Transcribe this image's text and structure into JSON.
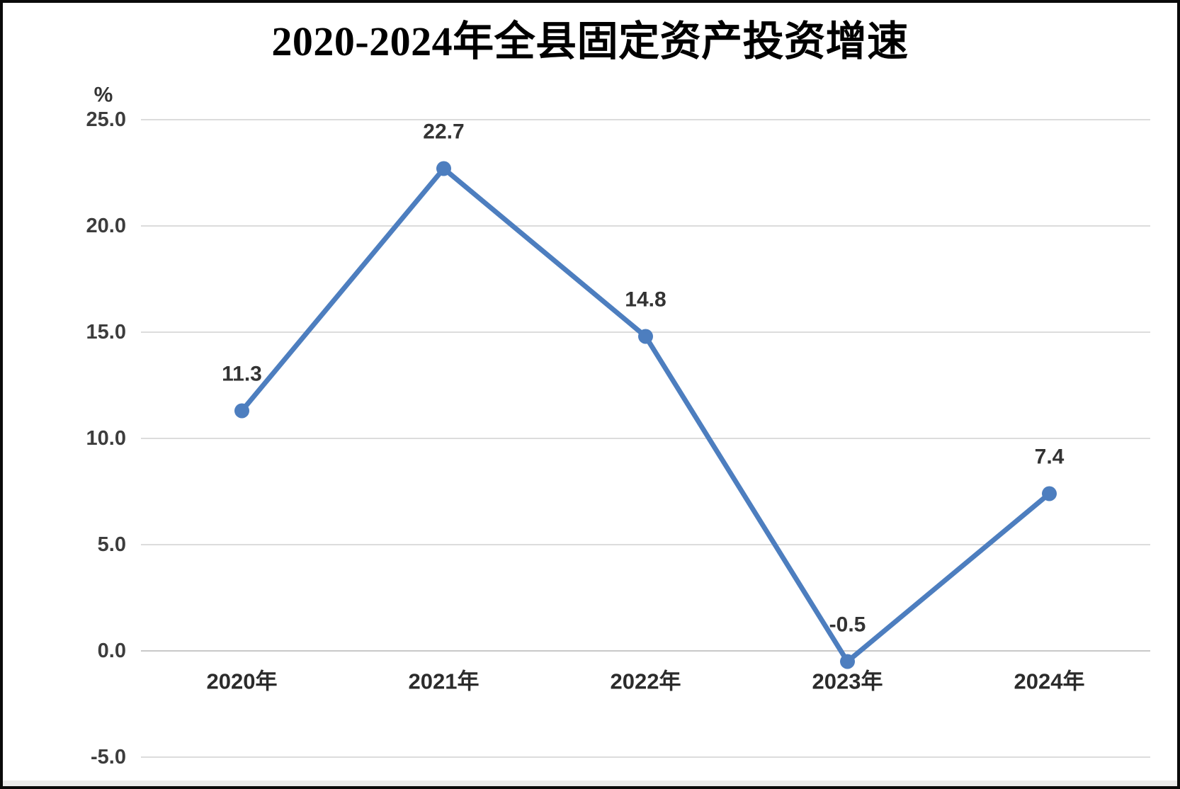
{
  "chart_data": {
    "type": "line",
    "title": "2020-2024年全县固定资产投资增速",
    "unit_label": "%",
    "categories": [
      "2020年",
      "2021年",
      "2022年",
      "2023年",
      "2024年"
    ],
    "values": [
      11.3,
      22.7,
      14.8,
      -0.5,
      7.4
    ],
    "point_labels": [
      "11.3",
      "22.7",
      "14.8",
      "-0.5",
      "7.4"
    ],
    "ylim": [
      -5.0,
      25.0
    ],
    "y_ticks": [
      25,
      20,
      15,
      10,
      5,
      0,
      -5
    ],
    "y_tick_decimals": 1,
    "grid": "horizontal-only",
    "legend": "none",
    "colors": {
      "line": "#4d7ebf",
      "marker": "#4d7ebf",
      "grid": "#dcdcdc",
      "zero_line": "#c8c8c8",
      "title_text": "#000000",
      "tick_text": "#3d3d3d",
      "x_label_text": "#2b2b2b",
      "data_label_text": "#333333",
      "unit_text": "#333333"
    }
  }
}
